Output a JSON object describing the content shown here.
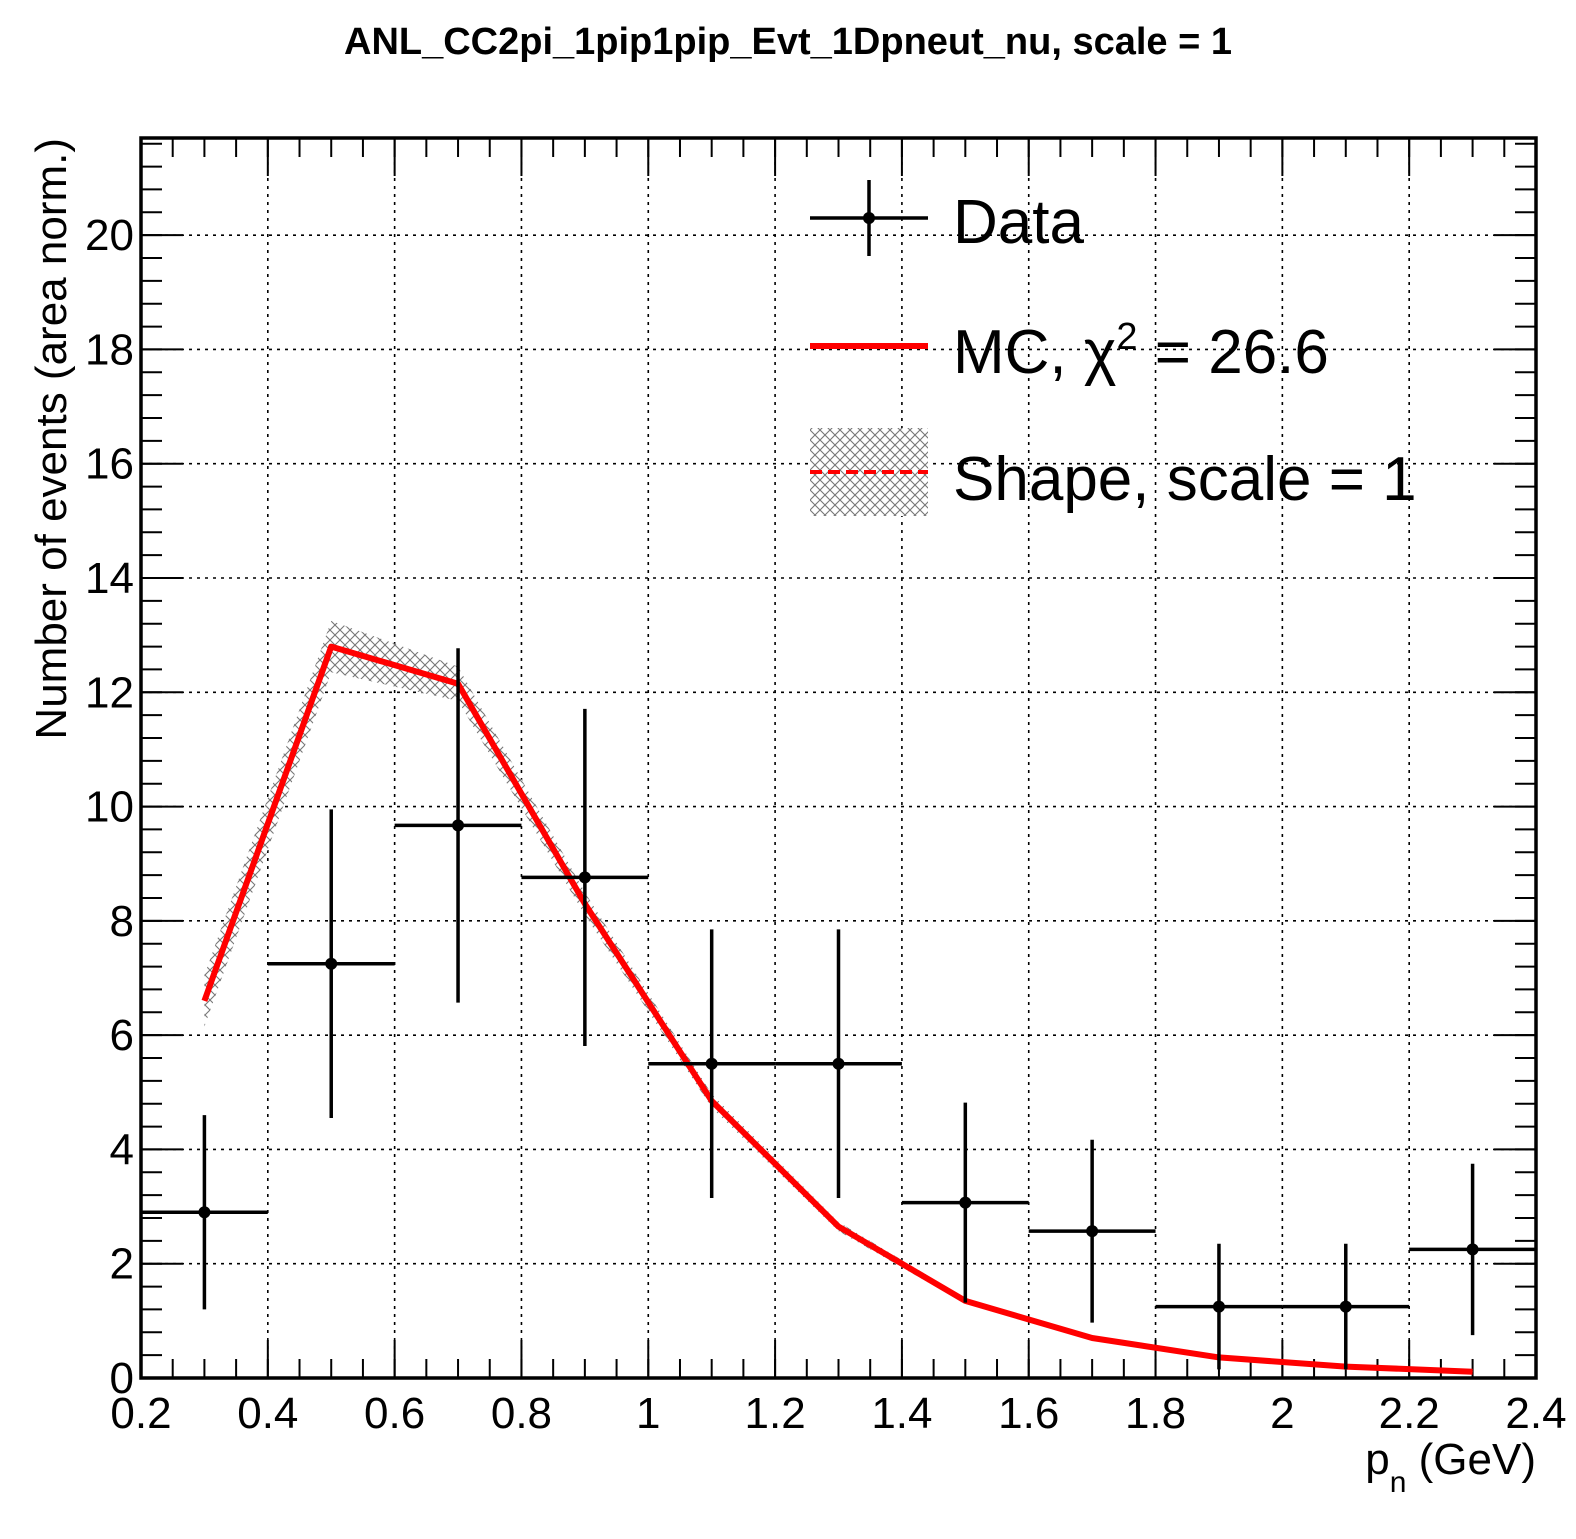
{
  "chart_data": {
    "type": "line",
    "title": "ANL_CC2pi_1pip1pip_Evt_1Dpneut_nu, scale = 1",
    "xlabel_main": "p",
    "xlabel_sub": "n",
    "xlabel_unit": " (GeV)",
    "ylabel": "Number of events (area norm.)",
    "xlim": [
      0.2,
      2.4
    ],
    "ylim": [
      0,
      21.7
    ],
    "grid": true,
    "legend_position": "top-right",
    "x_ticks": [
      0.2,
      0.4,
      0.6,
      0.8,
      1.0,
      1.2,
      1.4,
      1.6,
      1.8,
      2.0,
      2.2,
      2.4
    ],
    "x_tick_labels": [
      "0.2",
      "0.4",
      "0.6",
      "0.8",
      "1",
      "1.2",
      "1.4",
      "1.6",
      "1.8",
      "2",
      "2.2",
      "2.4"
    ],
    "y_ticks": [
      0,
      2,
      4,
      6,
      8,
      10,
      12,
      14,
      16,
      18,
      20
    ],
    "y_tick_labels": [
      "0",
      "2",
      "4",
      "6",
      "8",
      "10",
      "12",
      "14",
      "16",
      "18",
      "20"
    ],
    "series": [
      {
        "name": "Data",
        "kind": "points_with_errors",
        "color": "#000000",
        "x": [
          0.3,
          0.5,
          0.7,
          0.9,
          1.1,
          1.3,
          1.5,
          1.7,
          1.9,
          2.1,
          2.3
        ],
        "xerr": [
          0.1,
          0.1,
          0.1,
          0.1,
          0.1,
          0.1,
          0.1,
          0.1,
          0.1,
          0.1,
          0.1
        ],
        "y": [
          2.9,
          7.25,
          9.67,
          8.76,
          5.5,
          5.5,
          3.07,
          2.57,
          1.25,
          1.25,
          2.25
        ],
        "yerr": [
          1.7,
          2.7,
          3.1,
          2.95,
          2.35,
          2.35,
          1.75,
          1.6,
          1.1,
          1.1,
          1.5
        ]
      },
      {
        "name": "MC",
        "legend_suffix": " = 26.6",
        "kind": "line",
        "color": "#ff0000",
        "x": [
          0.3,
          0.5,
          0.7,
          0.9,
          1.1,
          1.3,
          1.5,
          1.7,
          1.9,
          2.1,
          2.3
        ],
        "y": [
          6.6,
          12.8,
          12.15,
          8.3,
          4.85,
          2.65,
          1.35,
          0.7,
          0.36,
          0.2,
          0.11
        ]
      },
      {
        "name": "Shape, scale = 1",
        "kind": "band",
        "color": "#ff0000",
        "x": [
          0.3,
          0.5,
          0.7,
          0.9,
          1.1,
          1.3,
          1.5,
          1.7,
          1.9,
          2.1,
          2.3
        ],
        "y": [
          6.6,
          12.8,
          12.15,
          8.3,
          4.85,
          2.65,
          1.35,
          0.7,
          0.36,
          0.2,
          0.11
        ],
        "yerr": [
          0.45,
          0.45,
          0.3,
          0.2,
          0.12,
          0.08,
          0.05,
          0.03,
          0.02,
          0.02,
          0.01
        ]
      }
    ]
  }
}
